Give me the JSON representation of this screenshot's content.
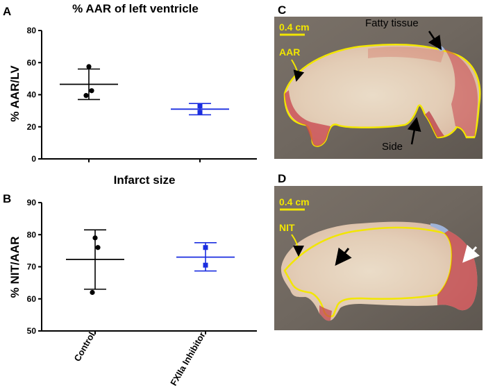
{
  "chart_data": [
    {
      "panel": "A",
      "type": "scatter",
      "title": "% AAR of left ventricle",
      "ylabel": "% AAR/LV",
      "ylim": [
        0,
        80
      ],
      "yticks": [
        0,
        20,
        40,
        60,
        80
      ],
      "categories": [
        "Control",
        "FXIIa Inhibitor"
      ],
      "series": [
        {
          "name": "Control",
          "color": "#000000",
          "marker": "circle",
          "points": [
            57.5,
            42.5,
            39.5
          ],
          "mean": 46.5,
          "sd_low": 37,
          "sd_high": 56
        },
        {
          "name": "FXIIa Inhibitor",
          "color": "#1a2de0",
          "marker": "square",
          "points": [
            33,
            29
          ],
          "mean": 31,
          "sd_low": 27.5,
          "sd_high": 34.5
        }
      ]
    },
    {
      "panel": "B",
      "type": "scatter",
      "title": "Infarct size",
      "ylabel": "% NIT/AAR",
      "ylim": [
        50,
        90
      ],
      "yticks": [
        50,
        60,
        70,
        80,
        90
      ],
      "categories": [
        "Control",
        "FXIIa Inhibitor"
      ],
      "series": [
        {
          "name": "Control",
          "color": "#000000",
          "marker": "circle",
          "points": [
            79,
            76,
            62
          ],
          "mean": 72.3,
          "sd_low": 63,
          "sd_high": 81.5
        },
        {
          "name": "FXIIa Inhibitor",
          "color": "#1a2de0",
          "marker": "square",
          "points": [
            76,
            70.5
          ],
          "mean": 73,
          "sd_low": 68.7,
          "sd_high": 77.5
        }
      ]
    }
  ],
  "photos": [
    {
      "panel": "C",
      "scale_label": "0.4 cm",
      "region_label": "AAR",
      "annotations": [
        "Fatty tissue",
        "Side"
      ]
    },
    {
      "panel": "D",
      "scale_label": "0.4 cm",
      "region_label": "NIT",
      "annotations": []
    }
  ],
  "colors": {
    "control": "#000000",
    "inhibitor": "#1a2de0",
    "outline": "#f2e600"
  }
}
